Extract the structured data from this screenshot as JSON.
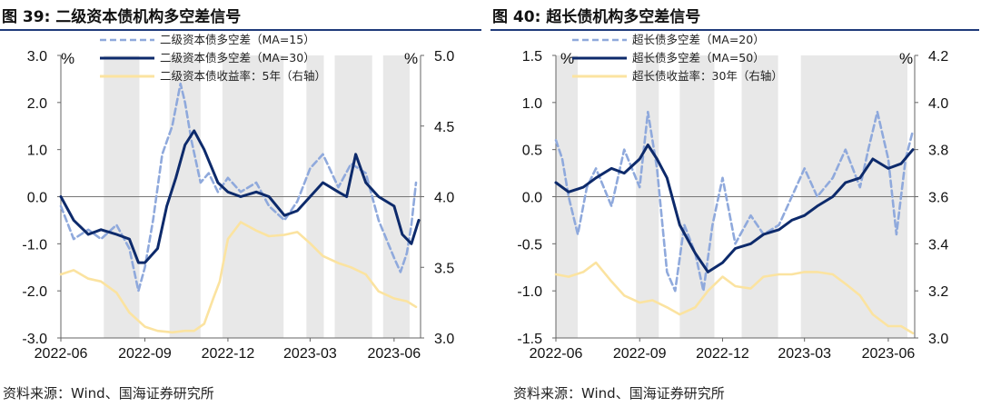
{
  "panels": {
    "left": {
      "title": "图 39:  二级资本债机构多空差信号",
      "source": "资料来源：Wind、国海证券研究所"
    },
    "right": {
      "title": "图 40:  超长债机构多空差信号",
      "source": "资料来源：Wind、国海证券研究所"
    }
  },
  "colors": {
    "ma_short": "#8fa9dc",
    "ma_long": "#0d2a6b",
    "yield": "#fbe3a0",
    "shade": "#e8e8e8",
    "title_rule": "#1f3a7a"
  },
  "chart_data": [
    {
      "type": "line",
      "title": "图 39:  二级资本债机构多空差信号",
      "left_unit": "%",
      "right_unit": "%",
      "x_tick_labels": [
        "2022-06",
        "2022-09",
        "2022-12",
        "2023-03",
        "2023-06"
      ],
      "x_tick_dates": [
        "2022-06-01",
        "2022-09-01",
        "2022-12-01",
        "2023-03-01",
        "2023-06-01"
      ],
      "x_range": [
        "2022-06-01",
        "2023-06-30"
      ],
      "ylim_left": [
        -3.0,
        3.0
      ],
      "yticks_left": [
        "3.0",
        "2.0",
        "1.0",
        "0.0",
        "-1.0",
        "-2.0",
        "-3.0"
      ],
      "yticks_left_values": [
        3,
        2,
        1,
        0,
        -1,
        -2,
        -3
      ],
      "ylim_right": [
        3.0,
        5.0
      ],
      "yticks_right": [
        "5.0",
        "4.5",
        "4.0",
        "3.5",
        "3.0"
      ],
      "yticks_right_values": [
        5,
        4.5,
        4,
        3.5,
        3
      ],
      "shaded_periods": [
        [
          "2022-07-18",
          "2022-08-26"
        ],
        [
          "2022-09-28",
          "2022-11-01"
        ],
        [
          "2022-11-25",
          "2023-01-31"
        ],
        [
          "2023-02-25",
          "2023-03-16"
        ],
        [
          "2023-03-28",
          "2023-05-08"
        ],
        [
          "2023-05-20",
          "2023-06-18"
        ]
      ],
      "legend_placement": "top-center",
      "series": [
        {
          "name": "二级资本债多空差（MA=15）",
          "axis": "left",
          "style": "dashed",
          "color_key": "ma_short",
          "dates": [
            "2022-06-01",
            "2022-06-15",
            "2022-07-01",
            "2022-07-15",
            "2022-08-01",
            "2022-08-15",
            "2022-08-25",
            "2022-09-01",
            "2022-09-10",
            "2022-09-20",
            "2022-10-01",
            "2022-10-10",
            "2022-10-15",
            "2022-10-22",
            "2022-11-01",
            "2022-11-10",
            "2022-11-20",
            "2022-12-01",
            "2022-12-15",
            "2023-01-01",
            "2023-01-15",
            "2023-02-01",
            "2023-02-15",
            "2023-03-01",
            "2023-03-15",
            "2023-04-01",
            "2023-04-15",
            "2023-05-01",
            "2023-05-15",
            "2023-06-01",
            "2023-06-08",
            "2023-06-15",
            "2023-06-20",
            "2023-06-25"
          ],
          "values": [
            -0.2,
            -0.9,
            -0.7,
            -0.9,
            -0.6,
            -1.1,
            -2.0,
            -1.5,
            -0.5,
            0.9,
            1.5,
            2.4,
            2.0,
            1.2,
            0.3,
            0.5,
            0.1,
            0.4,
            0.1,
            0.3,
            -0.2,
            -0.5,
            -0.1,
            0.6,
            0.9,
            0.2,
            0.7,
            0.5,
            -0.5,
            -1.3,
            -1.6,
            -1.2,
            -0.6,
            0.3
          ]
        },
        {
          "name": "二级资本债多空差（MA=30）",
          "axis": "left",
          "style": "solid",
          "color_key": "ma_long",
          "dates": [
            "2022-06-01",
            "2022-06-15",
            "2022-07-01",
            "2022-07-15",
            "2022-08-01",
            "2022-08-15",
            "2022-08-25",
            "2022-09-01",
            "2022-09-15",
            "2022-09-25",
            "2022-10-05",
            "2022-10-15",
            "2022-10-25",
            "2022-11-05",
            "2022-11-20",
            "2022-12-01",
            "2022-12-15",
            "2023-01-01",
            "2023-01-15",
            "2023-02-01",
            "2023-02-15",
            "2023-03-01",
            "2023-03-15",
            "2023-04-01",
            "2023-04-10",
            "2023-04-20",
            "2023-05-01",
            "2023-05-15",
            "2023-06-01",
            "2023-06-10",
            "2023-06-20",
            "2023-06-28"
          ],
          "values": [
            0.0,
            -0.5,
            -0.8,
            -0.7,
            -0.8,
            -0.9,
            -1.4,
            -1.4,
            -1.1,
            -0.2,
            0.4,
            1.1,
            1.4,
            1.0,
            0.3,
            0.1,
            0.0,
            0.1,
            0.0,
            -0.4,
            -0.3,
            0.0,
            0.3,
            0.1,
            0.0,
            0.9,
            0.3,
            0.0,
            -0.2,
            -0.8,
            -1.0,
            -0.5
          ]
        },
        {
          "name": "二级资本债收益率：5年（右轴）",
          "axis": "right",
          "style": "solid",
          "color_key": "yield",
          "dates": [
            "2022-06-01",
            "2022-06-15",
            "2022-07-01",
            "2022-07-15",
            "2022-08-01",
            "2022-08-15",
            "2022-09-01",
            "2022-09-15",
            "2022-10-01",
            "2022-10-15",
            "2022-10-25",
            "2022-11-05",
            "2022-11-15",
            "2022-11-22",
            "2022-12-01",
            "2022-12-15",
            "2023-01-01",
            "2023-01-15",
            "2023-02-01",
            "2023-02-15",
            "2023-03-01",
            "2023-03-15",
            "2023-04-01",
            "2023-04-15",
            "2023-05-01",
            "2023-05-15",
            "2023-06-01",
            "2023-06-15",
            "2023-06-25"
          ],
          "values": [
            3.45,
            3.48,
            3.42,
            3.4,
            3.32,
            3.18,
            3.08,
            3.05,
            3.04,
            3.05,
            3.05,
            3.1,
            3.28,
            3.4,
            3.7,
            3.82,
            3.76,
            3.72,
            3.73,
            3.75,
            3.67,
            3.58,
            3.53,
            3.5,
            3.45,
            3.33,
            3.28,
            3.26,
            3.22
          ]
        }
      ]
    },
    {
      "type": "line",
      "title": "图 40:  超长债机构多空差信号",
      "left_unit": "%",
      "right_unit": "%",
      "x_tick_labels": [
        "2022-06",
        "2022-09",
        "2022-12",
        "2023-03",
        "2023-06"
      ],
      "x_tick_dates": [
        "2022-06-01",
        "2022-09-01",
        "2022-12-01",
        "2023-03-01",
        "2023-06-01"
      ],
      "x_range": [
        "2022-06-01",
        "2023-06-30"
      ],
      "ylim_left": [
        -1.5,
        1.5
      ],
      "yticks_left": [
        "1.5",
        "1.0",
        "0.5",
        "0.0",
        "-0.5",
        "-1.0",
        "-1.5"
      ],
      "yticks_left_values": [
        1.5,
        1.0,
        0.5,
        0,
        -0.5,
        -1.0,
        -1.5
      ],
      "ylim_right": [
        3.0,
        4.2
      ],
      "yticks_right": [
        "4.2",
        "4.0",
        "3.8",
        "3.6",
        "3.4",
        "3.2",
        "3.0"
      ],
      "yticks_right_values": [
        4.2,
        4.0,
        3.8,
        3.6,
        3.4,
        3.2,
        3.0
      ],
      "shaded_periods": [
        [
          "2022-06-01",
          "2022-06-25"
        ],
        [
          "2022-08-28",
          "2022-09-22"
        ],
        [
          "2022-10-15",
          "2022-11-22"
        ],
        [
          "2022-12-22",
          "2023-01-31"
        ],
        [
          "2023-02-25",
          "2023-06-22"
        ]
      ],
      "legend_placement": "top-center",
      "series": [
        {
          "name": "超长债多空差（MA=20）",
          "axis": "left",
          "style": "dashed",
          "color_key": "ma_short",
          "dates": [
            "2022-06-01",
            "2022-06-08",
            "2022-06-15",
            "2022-06-25",
            "2022-07-05",
            "2022-07-15",
            "2022-08-01",
            "2022-08-15",
            "2022-09-01",
            "2022-09-10",
            "2022-09-20",
            "2022-10-01",
            "2022-10-10",
            "2022-10-20",
            "2022-11-01",
            "2022-11-10",
            "2022-11-20",
            "2022-12-01",
            "2022-12-15",
            "2023-01-01",
            "2023-01-15",
            "2023-02-01",
            "2023-02-15",
            "2023-03-01",
            "2023-03-15",
            "2023-04-01",
            "2023-04-15",
            "2023-05-01",
            "2023-05-10",
            "2023-05-20",
            "2023-06-01",
            "2023-06-10",
            "2023-06-20",
            "2023-06-28"
          ],
          "values": [
            0.6,
            0.4,
            0.0,
            -0.4,
            0.1,
            0.3,
            -0.1,
            0.5,
            0.1,
            0.9,
            0.3,
            -0.8,
            -1.0,
            -0.3,
            -0.6,
            -1.0,
            -0.3,
            0.2,
            -0.5,
            -0.2,
            -0.4,
            -0.3,
            0.0,
            0.3,
            0.0,
            0.2,
            0.5,
            0.1,
            0.5,
            0.9,
            0.4,
            -0.4,
            0.4,
            0.7
          ]
        },
        {
          "name": "超长债多空差（MA=50）",
          "axis": "left",
          "style": "solid",
          "color_key": "ma_long",
          "dates": [
            "2022-06-01",
            "2022-06-15",
            "2022-07-01",
            "2022-07-15",
            "2022-08-01",
            "2022-08-15",
            "2022-09-01",
            "2022-09-10",
            "2022-09-20",
            "2022-10-01",
            "2022-10-15",
            "2022-11-01",
            "2022-11-15",
            "2022-12-01",
            "2022-12-15",
            "2023-01-01",
            "2023-01-15",
            "2023-02-01",
            "2023-02-15",
            "2023-03-01",
            "2023-03-15",
            "2023-04-01",
            "2023-04-15",
            "2023-05-01",
            "2023-05-15",
            "2023-06-01",
            "2023-06-15",
            "2023-06-28"
          ],
          "values": [
            0.15,
            0.05,
            0.1,
            0.2,
            0.3,
            0.25,
            0.4,
            0.55,
            0.4,
            0.2,
            -0.3,
            -0.6,
            -0.8,
            -0.7,
            -0.55,
            -0.5,
            -0.4,
            -0.35,
            -0.25,
            -0.2,
            -0.1,
            0.0,
            0.15,
            0.2,
            0.4,
            0.3,
            0.35,
            0.5
          ]
        },
        {
          "name": "超长债收益率：30年（右轴）",
          "axis": "right",
          "style": "solid",
          "color_key": "yield",
          "dates": [
            "2022-06-01",
            "2022-06-15",
            "2022-07-01",
            "2022-07-15",
            "2022-08-01",
            "2022-08-15",
            "2022-09-01",
            "2022-09-15",
            "2022-10-01",
            "2022-10-15",
            "2022-11-01",
            "2022-11-15",
            "2022-12-01",
            "2022-12-15",
            "2023-01-01",
            "2023-01-15",
            "2023-02-01",
            "2023-02-15",
            "2023-03-01",
            "2023-03-15",
            "2023-04-01",
            "2023-04-15",
            "2023-05-01",
            "2023-05-15",
            "2023-06-01",
            "2023-06-15",
            "2023-06-28"
          ],
          "values": [
            3.27,
            3.26,
            3.28,
            3.32,
            3.24,
            3.18,
            3.15,
            3.16,
            3.13,
            3.1,
            3.13,
            3.2,
            3.26,
            3.22,
            3.21,
            3.26,
            3.27,
            3.27,
            3.28,
            3.28,
            3.27,
            3.23,
            3.18,
            3.1,
            3.05,
            3.05,
            3.02
          ]
        }
      ]
    }
  ]
}
